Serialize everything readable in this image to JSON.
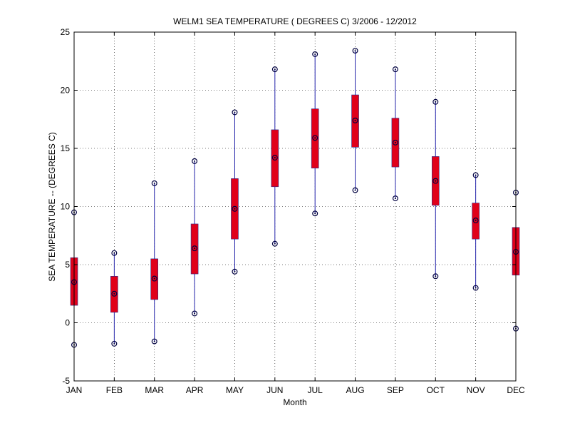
{
  "chart_data": {
    "type": "box",
    "title": "WELM1  SEA TEMPERATURE ( DEGREES C) 3/2006 - 12/2012",
    "xlabel": "Month",
    "ylabel": "SEA TEMPERATURE -- (DEGREES C)",
    "ylim": [
      -5,
      25
    ],
    "yticks": [
      -5,
      0,
      5,
      10,
      15,
      20,
      25
    ],
    "grid": true,
    "categories": [
      "JAN",
      "FEB",
      "MAR",
      "APR",
      "MAY",
      "JUN",
      "JUL",
      "AUG",
      "SEP",
      "OCT",
      "NOV",
      "DEC"
    ],
    "series": [
      {
        "min": -1.9,
        "q1": 1.5,
        "median": 3.5,
        "q3": 5.6,
        "max": 9.5
      },
      {
        "min": -1.8,
        "q1": 0.9,
        "median": 2.5,
        "q3": 4.0,
        "max": 6.0
      },
      {
        "min": -1.6,
        "q1": 2.0,
        "median": 3.8,
        "q3": 5.5,
        "max": 12.0
      },
      {
        "min": 0.8,
        "q1": 4.2,
        "median": 6.4,
        "q3": 8.5,
        "max": 13.9
      },
      {
        "min": 4.4,
        "q1": 7.2,
        "median": 9.8,
        "q3": 12.4,
        "max": 18.1
      },
      {
        "min": 6.8,
        "q1": 11.7,
        "median": 14.2,
        "q3": 16.6,
        "max": 21.8
      },
      {
        "min": 9.4,
        "q1": 13.3,
        "median": 15.9,
        "q3": 18.4,
        "max": 23.1
      },
      {
        "min": 11.4,
        "q1": 15.1,
        "median": 17.4,
        "q3": 19.6,
        "max": 23.4
      },
      {
        "min": 10.7,
        "q1": 13.4,
        "median": 15.5,
        "q3": 17.6,
        "max": 21.8
      },
      {
        "min": 4.0,
        "q1": 10.1,
        "median": 12.2,
        "q3": 14.3,
        "max": 19.0
      },
      {
        "min": 3.0,
        "q1": 7.2,
        "median": 8.8,
        "q3": 10.3,
        "max": 12.7
      },
      {
        "min": -0.5,
        "q1": 4.1,
        "median": 6.1,
        "q3": 8.2,
        "max": 11.2
      }
    ],
    "colors": {
      "whisker": "#2222aa",
      "box": "#e0001a",
      "marker": "#000040",
      "grid": "#000000"
    }
  }
}
